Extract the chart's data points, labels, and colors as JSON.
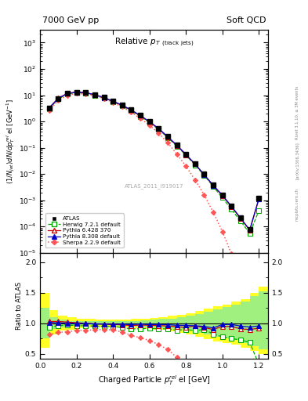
{
  "title_left": "7000 GeV pp",
  "title_right": "Soft QCD",
  "plot_title": "Relative $p_{T}$ $_{(track jets)}$",
  "watermark": "ATLAS_2011_I919017",
  "rivet_label": "Rivet 3.1.10, ≥ 3M events",
  "arxiv_label": "[arXiv:1306.3436]",
  "mcplots_label": "mcplots.cern.ch",
  "xlim": [
    0.0,
    1.25
  ],
  "ylim_main": [
    1e-05,
    3000
  ],
  "ylim_ratio": [
    0.42,
    2.15
  ],
  "atlas_x": [
    0.05,
    0.1,
    0.15,
    0.2,
    0.25,
    0.3,
    0.35,
    0.4,
    0.45,
    0.5,
    0.55,
    0.6,
    0.65,
    0.7,
    0.75,
    0.8,
    0.85,
    0.9,
    0.95,
    1.0,
    1.05,
    1.1,
    1.15,
    1.2
  ],
  "atlas_y": [
    3.2,
    7.5,
    11.5,
    13.0,
    12.5,
    10.5,
    8.2,
    6.0,
    4.2,
    2.8,
    1.7,
    1.0,
    0.55,
    0.27,
    0.13,
    0.058,
    0.025,
    0.01,
    0.004,
    0.0016,
    0.0006,
    0.00022,
    8e-05,
    0.0012
  ],
  "herwig_x": [
    0.05,
    0.1,
    0.15,
    0.2,
    0.25,
    0.3,
    0.35,
    0.4,
    0.45,
    0.5,
    0.55,
    0.6,
    0.65,
    0.7,
    0.75,
    0.8,
    0.85,
    0.9,
    0.95,
    1.0,
    1.05,
    1.1,
    1.15,
    1.2
  ],
  "herwig_y": [
    3.0,
    7.2,
    11.2,
    12.5,
    12.0,
    10.0,
    7.8,
    5.7,
    3.9,
    2.55,
    1.55,
    0.92,
    0.5,
    0.245,
    0.115,
    0.052,
    0.022,
    0.009,
    0.0033,
    0.00125,
    0.00045,
    0.00016,
    5.5e-05,
    0.0004
  ],
  "pythia6_x": [
    0.05,
    0.1,
    0.15,
    0.2,
    0.25,
    0.3,
    0.35,
    0.4,
    0.45,
    0.5,
    0.55,
    0.6,
    0.65,
    0.7,
    0.75,
    0.8,
    0.85,
    0.9,
    0.95,
    1.0,
    1.05,
    1.1,
    1.15,
    1.2
  ],
  "pythia6_y": [
    3.3,
    7.7,
    11.7,
    13.1,
    12.5,
    10.4,
    8.1,
    5.9,
    4.1,
    2.7,
    1.65,
    0.97,
    0.53,
    0.258,
    0.123,
    0.054,
    0.024,
    0.0093,
    0.0036,
    0.00152,
    0.00057,
    0.0002,
    7.2e-05,
    0.0011
  ],
  "pythia8_x": [
    0.05,
    0.1,
    0.15,
    0.2,
    0.25,
    0.3,
    0.35,
    0.4,
    0.45,
    0.5,
    0.55,
    0.6,
    0.65,
    0.7,
    0.75,
    0.8,
    0.85,
    0.9,
    0.95,
    1.0,
    1.05,
    1.1,
    1.15,
    1.2
  ],
  "pythia8_y": [
    3.25,
    7.55,
    11.55,
    13.0,
    12.5,
    10.4,
    8.1,
    5.9,
    4.15,
    2.74,
    1.68,
    0.98,
    0.54,
    0.264,
    0.126,
    0.056,
    0.024,
    0.0095,
    0.0037,
    0.00157,
    0.00059,
    0.00021,
    7.5e-05,
    0.00115
  ],
  "sherpa_x": [
    0.05,
    0.1,
    0.15,
    0.2,
    0.25,
    0.3,
    0.35,
    0.4,
    0.45,
    0.5,
    0.55,
    0.6,
    0.65,
    0.7,
    0.75,
    0.8,
    0.85,
    0.9,
    0.95,
    1.0,
    1.05,
    1.1,
    1.15,
    1.2
  ],
  "sherpa_y": [
    2.6,
    6.4,
    9.9,
    11.5,
    11.1,
    9.4,
    7.4,
    5.35,
    3.6,
    2.25,
    1.3,
    0.72,
    0.36,
    0.155,
    0.058,
    0.02,
    0.006,
    0.0016,
    0.00035,
    6.5e-05,
    9e-06,
    1e-06,
    1e-07,
    5e-08
  ],
  "herwig_ratio": [
    0.94,
    0.96,
    0.975,
    0.96,
    0.96,
    0.955,
    0.95,
    0.95,
    0.93,
    0.91,
    0.91,
    0.92,
    0.91,
    0.91,
    0.885,
    0.9,
    0.88,
    0.9,
    0.825,
    0.78,
    0.75,
    0.73,
    0.69,
    0.33
  ],
  "pythia6_ratio": [
    1.03,
    1.03,
    1.02,
    1.01,
    1.0,
    0.99,
    0.988,
    0.983,
    0.976,
    0.964,
    0.971,
    0.97,
    0.964,
    0.956,
    0.946,
    0.931,
    0.96,
    0.93,
    0.9,
    0.95,
    0.95,
    0.91,
    0.9,
    0.92
  ],
  "pythia8_ratio": [
    1.016,
    1.007,
    1.004,
    1.0,
    1.0,
    0.99,
    0.988,
    0.983,
    0.988,
    0.979,
    0.988,
    0.98,
    0.982,
    0.978,
    0.969,
    0.966,
    0.96,
    0.95,
    0.925,
    0.981,
    0.983,
    0.955,
    0.94,
    0.958
  ],
  "sherpa_ratio": [
    0.813,
    0.853,
    0.861,
    0.885,
    0.888,
    0.895,
    0.902,
    0.892,
    0.857,
    0.804,
    0.765,
    0.72,
    0.655,
    0.574,
    0.446,
    0.345,
    0.24,
    0.16,
    0.0875,
    0.0406,
    0.015,
    0.00455,
    0.00125,
    4.2e-05
  ],
  "atlas_color": "#000000",
  "herwig_color": "#00aa00",
  "pythia6_color": "#cc0000",
  "pythia8_color": "#0000cc",
  "sherpa_color": "#ff5555",
  "band_x_edges": [
    0.0,
    0.05,
    0.1,
    0.15,
    0.2,
    0.25,
    0.3,
    0.35,
    0.4,
    0.45,
    0.5,
    0.55,
    0.6,
    0.65,
    0.7,
    0.75,
    0.8,
    0.85,
    0.9,
    0.95,
    1.0,
    1.05,
    1.1,
    1.15,
    1.2,
    1.25
  ],
  "band_yellow_vals": [
    1.5,
    1.22,
    1.13,
    1.1,
    1.08,
    1.07,
    1.06,
    1.06,
    1.06,
    1.06,
    1.07,
    1.08,
    1.09,
    1.1,
    1.12,
    1.14,
    1.17,
    1.2,
    1.24,
    1.28,
    1.3,
    1.35,
    1.4,
    1.5,
    1.6
  ],
  "band_yellow_low_vals": [
    0.6,
    0.82,
    0.88,
    0.9,
    0.92,
    0.93,
    0.94,
    0.94,
    0.94,
    0.93,
    0.92,
    0.91,
    0.9,
    0.89,
    0.87,
    0.85,
    0.82,
    0.78,
    0.74,
    0.7,
    0.68,
    0.65,
    0.6,
    0.55,
    0.5
  ],
  "band_green_vals": [
    1.25,
    1.1,
    1.06,
    1.04,
    1.03,
    1.03,
    1.03,
    1.03,
    1.03,
    1.04,
    1.04,
    1.05,
    1.06,
    1.07,
    1.08,
    1.1,
    1.12,
    1.15,
    1.19,
    1.23,
    1.26,
    1.3,
    1.36,
    1.44,
    1.52
  ],
  "band_green_low_vals": [
    0.75,
    0.91,
    0.94,
    0.96,
    0.97,
    0.97,
    0.97,
    0.97,
    0.96,
    0.96,
    0.95,
    0.94,
    0.93,
    0.92,
    0.91,
    0.9,
    0.88,
    0.85,
    0.82,
    0.78,
    0.76,
    0.73,
    0.68,
    0.63,
    0.58
  ]
}
